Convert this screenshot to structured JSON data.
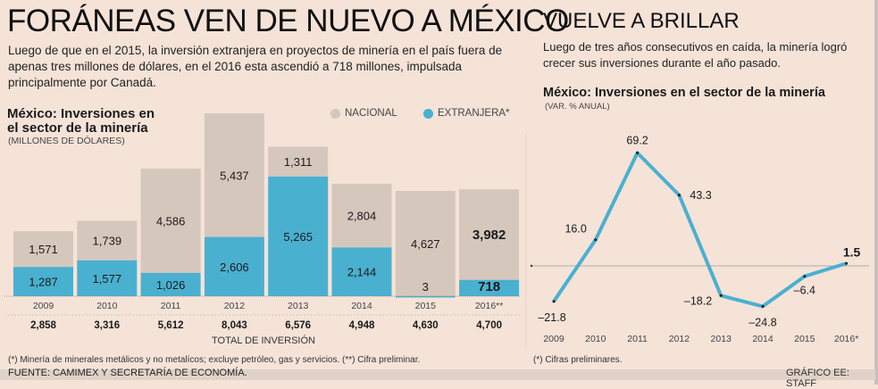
{
  "left": {
    "title": "FORÁNEAS VEN DE NUEVO A MÉXICO",
    "intro": "Luego de que en el 2015, la inversión extranjera en proyectos de minería en el país fuera de apenas tres millones de dólares, en el 2016 esta ascendió a 718 millones, impulsada principalmente por Canadá.",
    "subtitle": "México: Inversiones en el sector de la minería",
    "unit": "(MILLONES DE DÓLARES)",
    "total_label": "TOTAL DE INVERSIÓN",
    "footnote": "(*) Minería de minerales metálicos y no metalícos; excluye petróleo, gas y servicios. (**) Cifra preliminar.",
    "source": "FUENTE: CAMIMEX Y SECRETARÍA DE ECONOMÍA."
  },
  "right": {
    "title": "VUELVE A BRILLAR",
    "intro": "Luego de tres años consecutivos en caída, la minería logró crecer sus inversiones durante el año pasado.",
    "subtitle": "México: Inversiones en el sector de la minería",
    "unit": "(VAR. % ANUAL)",
    "footnote": "(*) Cifras preliminares.",
    "credit": "GRÁFICO EE: STAFF"
  },
  "colors": {
    "background": "#f5e3d8",
    "nacional": "#d6c7bd",
    "extranjera": "#4ab0d0",
    "line": "#4ab0d0"
  },
  "chart_data": [
    {
      "type": "bar",
      "stacked": true,
      "title": "México: Inversiones en el sector de la minería",
      "ylabel": "(MILLONES DE DÓLARES)",
      "xlabel": "TOTAL DE INVERSIÓN",
      "categories": [
        "2009",
        "2010",
        "2011",
        "2012",
        "2013",
        "2014",
        "2015",
        "2016**"
      ],
      "series": [
        {
          "name": "EXTRANJERA*",
          "labels": [
            "1,287",
            "1,577",
            "1,026",
            "2,606",
            "5,265",
            "2,144",
            "3",
            "718"
          ],
          "values": [
            1287,
            1577,
            1026,
            2606,
            5265,
            2144,
            3,
            718
          ]
        },
        {
          "name": "NACIONAL",
          "labels": [
            "1,571",
            "1,739",
            "4,586",
            "5,437",
            "1,311",
            "2,804",
            "4,627",
            "3,982"
          ],
          "values": [
            1571,
            1739,
            4586,
            5437,
            1311,
            2804,
            4627,
            3982
          ]
        }
      ],
      "totals": [
        "2,858",
        "3,316",
        "5,612",
        "8,043",
        "6,576",
        "4,948",
        "4,630",
        "4,700"
      ],
      "legend": [
        "NACIONAL",
        "EXTRANJERA*"
      ],
      "legend_position": "top-right",
      "highlight_last": true,
      "ylim": [
        0,
        8043
      ],
      "grid": false
    },
    {
      "type": "line",
      "title": "México: Inversiones en el sector de la minería",
      "ylabel": "(VAR. % ANUAL)",
      "categories": [
        "2009",
        "2010",
        "2011",
        "2012",
        "2013",
        "2014",
        "2015",
        "2016*"
      ],
      "series": [
        {
          "name": "Var. % anual",
          "labels": [
            "–21.8",
            "16.0",
            "69.2",
            "43.3",
            "–18.2",
            "–24.8",
            "–6.4",
            "1.5"
          ],
          "values": [
            -21.8,
            16.0,
            69.2,
            43.3,
            -18.2,
            -24.8,
            -6.4,
            1.5
          ]
        }
      ],
      "zero_line": true,
      "ylim": [
        -30,
        75
      ],
      "grid": false
    }
  ]
}
